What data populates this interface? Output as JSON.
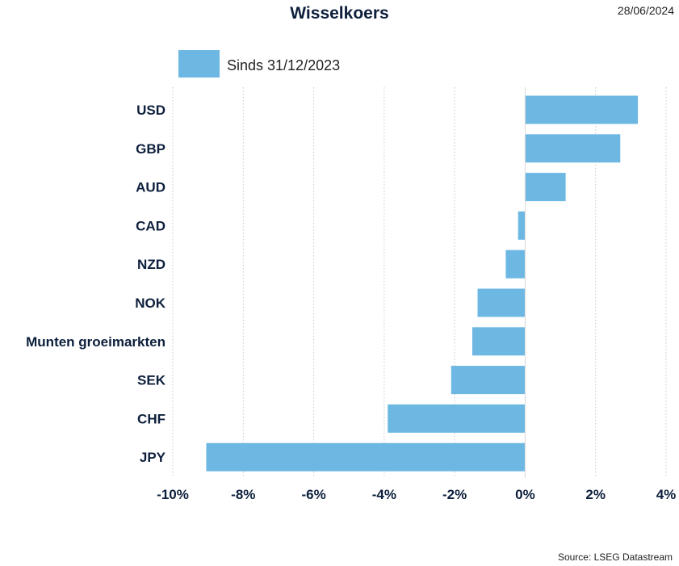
{
  "header": {
    "title": "Wisselkoers",
    "date": "28/06/2024"
  },
  "footer": {
    "source": "Source: LSEG Datastream"
  },
  "colors": {
    "bar": "#6cb8e3",
    "text": "#0d1f3c",
    "grid": "#c8c8c8"
  },
  "chart_data": {
    "type": "bar",
    "orientation": "horizontal",
    "title": "Wisselkoers",
    "categories": [
      "USD",
      "GBP",
      "AUD",
      "CAD",
      "NZD",
      "NOK",
      "Munten groeimarkten",
      "SEK",
      "CHF",
      "JPY"
    ],
    "series": [
      {
        "name": "Sinds 31/12/2023",
        "values": [
          3.2,
          2.7,
          1.15,
          -0.2,
          -0.55,
          -1.35,
          -1.5,
          -2.1,
          -3.9,
          -9.05
        ]
      }
    ],
    "xlim": [
      -10,
      4
    ],
    "xticks": [
      -10,
      -8,
      -6,
      -4,
      -2,
      0,
      2,
      4
    ],
    "xtick_labels": [
      "-10%",
      "-8%",
      "-6%",
      "-4%",
      "-2%",
      "0%",
      "2%",
      "4%"
    ],
    "grid": "vertical dotted",
    "legend_position": "top"
  }
}
